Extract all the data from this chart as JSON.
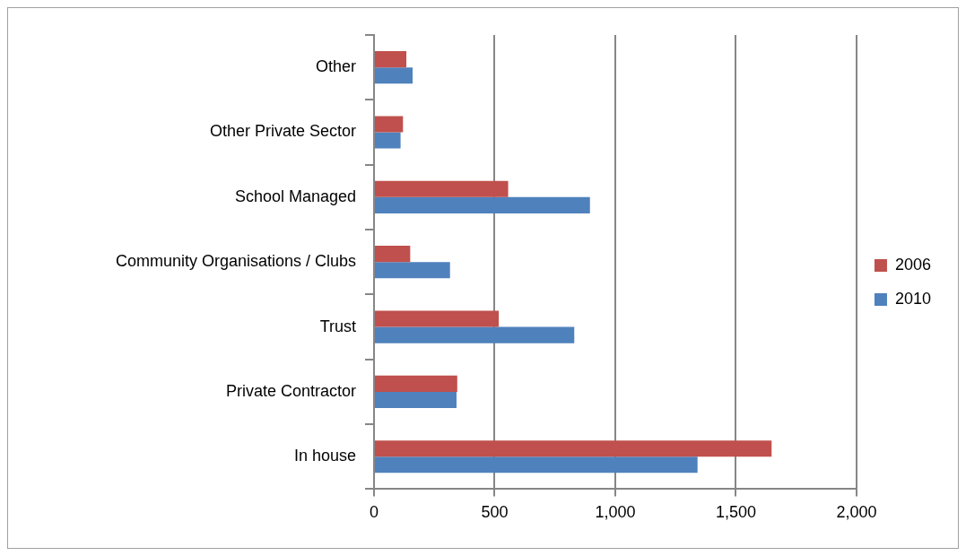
{
  "chart_data": {
    "type": "bar",
    "orientation": "horizontal",
    "categories": [
      "Other",
      "Other Private Sector",
      "School Managed",
      "Community Organisations / Clubs",
      "Trust",
      "Private Contractor",
      "In house"
    ],
    "series": [
      {
        "name": "2006",
        "color": "#c0504d",
        "values": [
          134,
          120,
          556,
          150,
          517,
          345,
          1648
        ]
      },
      {
        "name": "2010",
        "color": "#4f81bd",
        "values": [
          160,
          110,
          895,
          315,
          830,
          342,
          1341
        ]
      }
    ],
    "xlim": [
      0,
      2000
    ],
    "xticks": [
      {
        "value": 0,
        "label": "0"
      },
      {
        "value": 500,
        "label": "500"
      },
      {
        "value": 1000,
        "label": "1,000"
      },
      {
        "value": 1500,
        "label": "1,500"
      },
      {
        "value": 2000,
        "label": "2,000"
      }
    ],
    "grid": "x",
    "legend": "right"
  }
}
